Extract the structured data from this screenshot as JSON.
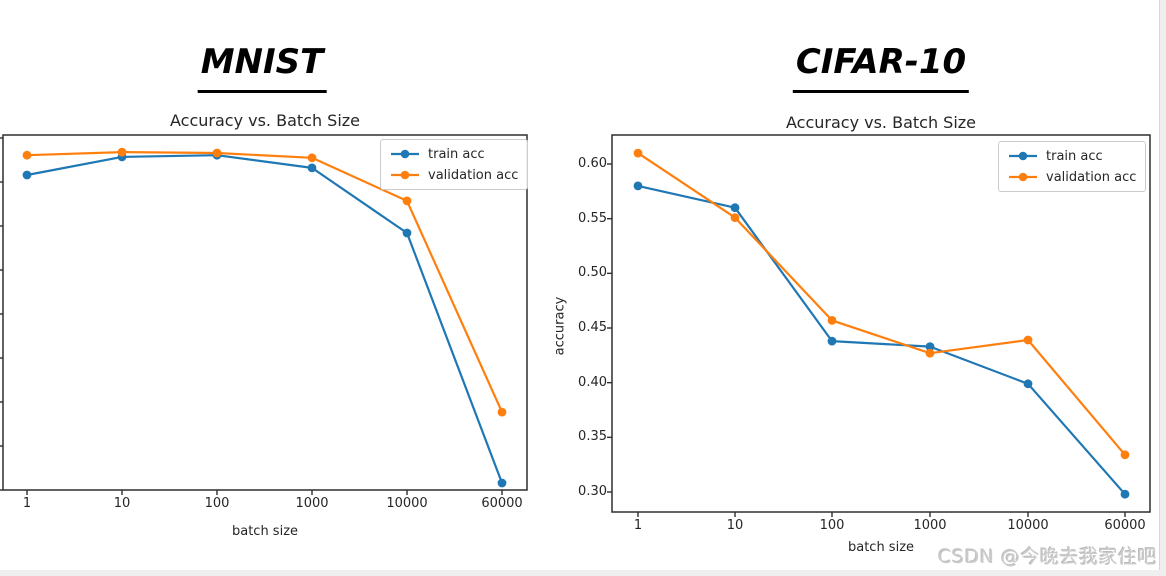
{
  "page": {
    "watermark": "CSDN @今晚去我家住吧"
  },
  "colors": {
    "train": "#1f77b4",
    "validation": "#ff7f0e",
    "axis": "#2e2e2e",
    "text": "#262626",
    "watermark": "#cbcbcb"
  },
  "chart_data": [
    {
      "id": "mnist",
      "type": "line",
      "heading": "MNIST",
      "title": "Accuracy vs. Batch Size",
      "xlabel": "batch size",
      "ylabel": "",
      "categories": [
        1,
        10,
        100,
        1000,
        10000,
        60000
      ],
      "x_tick_labels": [
        "1",
        "10",
        "100",
        "1000",
        "10000",
        "60000"
      ],
      "series": [
        {
          "name": "train acc",
          "color": "#1f77b4",
          "values": [
            0.916,
            0.957,
            0.961,
            0.932,
            0.784,
            0.216
          ]
        },
        {
          "name": "validation acc",
          "color": "#ff7f0e",
          "values": [
            0.961,
            0.968,
            0.966,
            0.955,
            0.857,
            0.377
          ]
        }
      ],
      "ylim": [
        0.2,
        1.005
      ],
      "yticks": [
        0.2,
        0.3,
        0.4,
        0.5,
        0.6,
        0.7,
        0.8,
        0.9,
        1.0
      ],
      "ytick_labels": [],
      "ytick_labels_visible": false,
      "grid": false,
      "legend_position": "upper right"
    },
    {
      "id": "cifar10",
      "type": "line",
      "heading": "CIFAR-10",
      "title": "Accuracy vs. Batch Size",
      "xlabel": "batch size",
      "ylabel": "accuracy",
      "categories": [
        1,
        10,
        100,
        1000,
        10000,
        60000
      ],
      "x_tick_labels": [
        "1",
        "10",
        "100",
        "1000",
        "10000",
        "60000"
      ],
      "series": [
        {
          "name": "train acc",
          "color": "#1f77b4",
          "values": [
            0.58,
            0.56,
            0.438,
            0.433,
            0.399,
            0.298
          ]
        },
        {
          "name": "validation acc",
          "color": "#ff7f0e",
          "values": [
            0.61,
            0.551,
            0.457,
            0.427,
            0.439,
            0.334
          ]
        }
      ],
      "ylim": [
        0.282,
        0.627
      ],
      "yticks": [
        0.3,
        0.35,
        0.4,
        0.45,
        0.5,
        0.55,
        0.6
      ],
      "ytick_labels": [
        "0.30",
        "0.35",
        "0.40",
        "0.45",
        "0.50",
        "0.55",
        "0.60"
      ],
      "ytick_labels_visible": true,
      "grid": false,
      "legend_position": "upper right"
    }
  ]
}
